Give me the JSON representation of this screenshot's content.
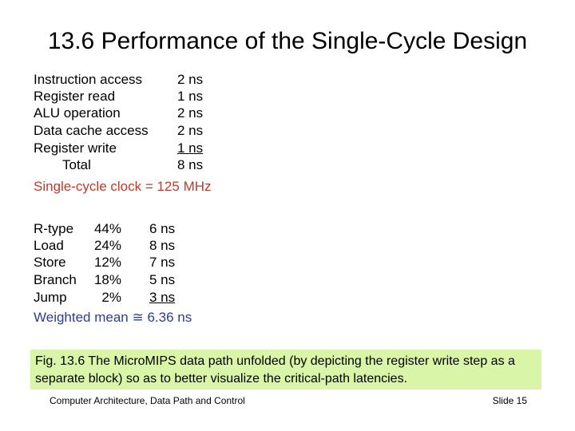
{
  "title": "13.6  Performance of the Single-Cycle Design",
  "latencies": [
    {
      "label": "Instruction access",
      "value": "2 ns"
    },
    {
      "label": "Register read",
      "value": "1 ns"
    },
    {
      "label": "ALU operation",
      "value": "2 ns"
    },
    {
      "label": "Data cache access",
      "value": "2 ns"
    },
    {
      "label": "Register write",
      "value": "1 ns"
    },
    {
      "label": "Total",
      "value": "8 ns"
    }
  ],
  "clock_summary": "Single-cycle clock = 125 MHz",
  "mix": [
    {
      "type": "R-type",
      "percent": "44%",
      "time": "6 ns"
    },
    {
      "type": "Load",
      "percent": "24%",
      "time": "8 ns"
    },
    {
      "type": "Store",
      "percent": "12%",
      "time": "7 ns"
    },
    {
      "type": "Branch",
      "percent": "18%",
      "time": "5 ns"
    },
    {
      "type": "Jump",
      "percent": "2%",
      "time": "3 ns"
    }
  ],
  "weighted_mean": "Weighted mean ≅ 6.36 ns",
  "caption": "Fig. 13.6    The MicroMIPS data path unfolded (by depicting the register write step as a separate block) so as to better visualize the critical-path latencies.",
  "footer": {
    "left": "Computer Architecture, Data Path and Control",
    "right": "Slide 15"
  },
  "colors": {
    "clock_text": "#c0392b",
    "mean_text": "#2e3c8c",
    "caption_bg": "#d9f5a8"
  }
}
